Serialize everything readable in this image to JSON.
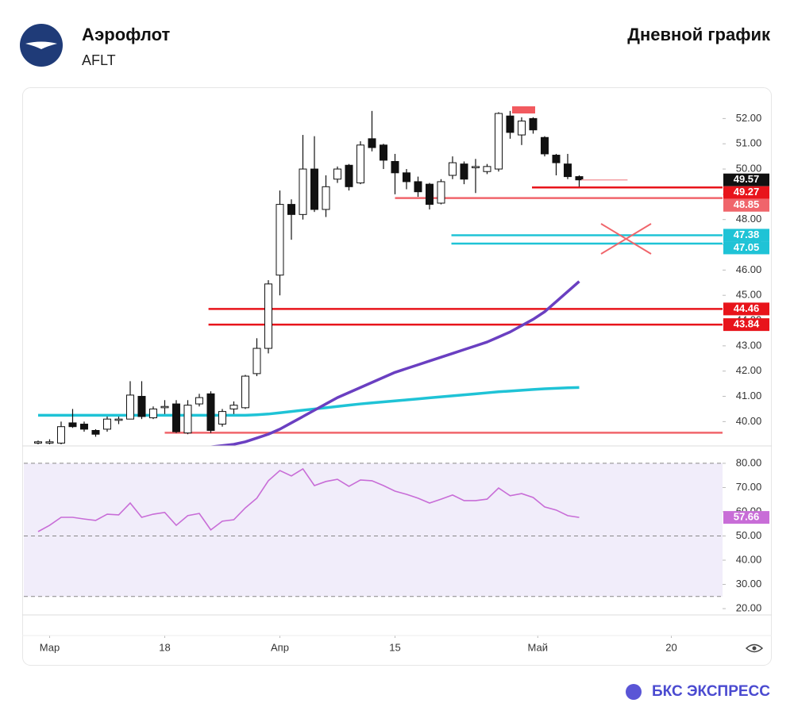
{
  "header": {
    "title": "Аэрофлот",
    "ticker": "AFLT",
    "subtitle": "Дневной график"
  },
  "footer": {
    "brand": "БКС ЭКСПРЕСС"
  },
  "chart_data": [
    {
      "type": "candlestick",
      "open": [
        39.15,
        39.15,
        39.15,
        39.95,
        39.9,
        39.65,
        39.7,
        40.05,
        40.1,
        41.0,
        40.15,
        40.55,
        40.7,
        39.55,
        40.7,
        41.1,
        39.9,
        40.5,
        40.55,
        41.9,
        42.9,
        45.8,
        48.6,
        48.2,
        50.0,
        48.4,
        49.6,
        50.15,
        49.45,
        51.2,
        50.95,
        50.3,
        49.85,
        49.5,
        49.4,
        48.65,
        49.75,
        50.2,
        50.05,
        49.9,
        50.0,
        52.1,
        51.35,
        52.0,
        51.25,
        50.55,
        50.2,
        49.7
      ],
      "high": [
        39.25,
        39.3,
        40.0,
        40.5,
        40.0,
        39.7,
        40.2,
        40.2,
        41.6,
        41.6,
        40.6,
        40.85,
        40.85,
        40.85,
        41.1,
        41.2,
        40.5,
        40.8,
        41.85,
        43.3,
        45.6,
        49.15,
        48.8,
        51.35,
        51.3,
        49.75,
        50.1,
        50.2,
        51.1,
        52.3,
        51.0,
        50.6,
        50.0,
        49.7,
        49.45,
        49.6,
        50.5,
        50.3,
        50.4,
        50.2,
        52.25,
        52.3,
        52.05,
        52.05,
        51.3,
        50.6,
        50.6,
        49.75
      ],
      "low": [
        39.1,
        39.1,
        39.1,
        39.75,
        39.6,
        39.4,
        39.6,
        39.9,
        40.1,
        40.1,
        40.1,
        40.3,
        39.55,
        39.5,
        40.6,
        39.55,
        39.8,
        40.3,
        40.5,
        41.8,
        42.7,
        45.0,
        47.2,
        48.0,
        48.3,
        48.1,
        49.45,
        49.15,
        49.4,
        50.7,
        50.0,
        49.0,
        49.2,
        48.9,
        48.4,
        48.6,
        49.6,
        49.4,
        49.05,
        49.8,
        49.9,
        51.2,
        50.95,
        51.4,
        50.5,
        49.75,
        49.6,
        49.3
      ],
      "close": [
        39.2,
        39.2,
        39.8,
        39.8,
        39.7,
        39.5,
        40.1,
        40.1,
        41.05,
        40.2,
        40.5,
        40.6,
        39.6,
        40.65,
        40.95,
        39.65,
        40.4,
        40.65,
        41.8,
        42.9,
        45.45,
        48.6,
        48.2,
        50.0,
        48.4,
        49.3,
        50.0,
        49.3,
        50.95,
        50.85,
        50.35,
        49.85,
        49.5,
        49.1,
        48.6,
        49.5,
        50.25,
        49.6,
        50.1,
        50.1,
        52.2,
        51.45,
        51.9,
        51.55,
        50.6,
        50.25,
        49.7,
        49.57
      ],
      "up_color": "#ffffff",
      "down_color": "#111111",
      "series": [
        {
          "color": "#1fc3d6",
          "values": [
            40.25,
            40.25,
            40.25,
            40.25,
            40.25,
            40.25,
            40.25,
            40.25,
            40.25,
            40.25,
            40.25,
            40.25,
            40.25,
            40.25,
            40.25,
            40.25,
            40.25,
            40.25,
            40.25,
            40.27,
            40.3,
            40.35,
            40.4,
            40.45,
            40.5,
            40.55,
            40.6,
            40.65,
            40.7,
            40.74,
            40.78,
            40.82,
            40.86,
            40.9,
            40.94,
            40.98,
            41.02,
            41.06,
            41.1,
            41.14,
            41.18,
            41.21,
            41.24,
            41.27,
            41.3,
            41.32,
            41.34,
            41.35
          ]
        },
        {
          "color": "#6a3fc1",
          "values": [
            null,
            null,
            null,
            null,
            null,
            null,
            null,
            null,
            null,
            null,
            null,
            null,
            null,
            null,
            null,
            39.0,
            39.05,
            39.1,
            39.2,
            39.35,
            39.5,
            39.7,
            39.95,
            40.2,
            40.45,
            40.7,
            40.95,
            41.15,
            41.35,
            41.55,
            41.75,
            41.95,
            42.1,
            42.25,
            42.4,
            42.55,
            42.7,
            42.85,
            43.0,
            43.15,
            43.35,
            43.55,
            43.8,
            44.05,
            44.35,
            44.75,
            45.15,
            45.55
          ]
        }
      ],
      "levels": [
        {
          "value": 49.27,
          "color": "#e8141b",
          "x": [
            42.9,
            59.45
          ],
          "label_box": true
        },
        {
          "value": 48.85,
          "color": "#f0656b",
          "x": [
            31.0,
            59.45
          ],
          "label_box": true
        },
        {
          "value": 47.38,
          "color": "#1fc3d6",
          "x": [
            35.9,
            59.45
          ],
          "label_box": true
        },
        {
          "value": 47.05,
          "color": "#1fc3d6",
          "x": [
            35.9,
            59.45
          ],
          "label_box": true
        },
        {
          "value": 44.46,
          "color": "#e8141b",
          "x": [
            14.8,
            59.45
          ],
          "label_box": true
        },
        {
          "value": 43.84,
          "color": "#e8141b",
          "x": [
            14.8,
            59.45
          ],
          "label_box": true
        },
        {
          "value": 39.56,
          "color": "#f0656b",
          "x": [
            11.0,
            59.45
          ],
          "label_box": false
        }
      ],
      "last_price_line": {
        "color": "#f4a0a4",
        "x": [
          47.2,
          51.2
        ]
      },
      "last_price_box_color": "#111111",
      "xlim": [
        -1.24,
        59.45
      ],
      "ylim": [
        39.1,
        53.08
      ],
      "xticks": [
        {
          "value": 1,
          "label": "Мар"
        },
        {
          "value": 11,
          "label": "18"
        },
        {
          "value": 21,
          "label": "Апр"
        },
        {
          "value": 31,
          "label": "15"
        },
        {
          "value": 43.4,
          "label": "Май"
        },
        {
          "value": 55,
          "label": "20"
        }
      ],
      "yticks": [
        {
          "value": 40,
          "label": "40.00"
        },
        {
          "value": 41,
          "label": "41.00"
        },
        {
          "value": 42,
          "label": "42.00"
        },
        {
          "value": 43,
          "label": "43.00"
        },
        {
          "value": 44,
          "label": "44.00"
        },
        {
          "value": 45,
          "label": "45.00"
        },
        {
          "value": 46,
          "label": "46.00"
        },
        {
          "value": 47,
          "label": "47.00"
        },
        {
          "value": 48,
          "label": "48.00"
        },
        {
          "value": 49,
          "label": "49.00"
        },
        {
          "value": 50,
          "label": "50.00"
        },
        {
          "value": 51,
          "label": "51.00"
        },
        {
          "value": 52,
          "label": "52.00"
        }
      ]
    },
    {
      "type": "line",
      "color": "#c86dd7",
      "values": [
        51.8,
        54.4,
        57.7,
        57.7,
        57.0,
        56.4,
        59.0,
        58.7,
        63.6,
        57.7,
        59.0,
        59.7,
        54.4,
        58.4,
        59.3,
        52.5,
        56.1,
        56.7,
        61.6,
        65.6,
        72.8,
        77.0,
        74.8,
        77.7,
        70.8,
        72.5,
        73.4,
        70.5,
        73.1,
        72.8,
        70.8,
        68.5,
        67.2,
        65.6,
        63.6,
        65.2,
        66.9,
        64.6,
        64.6,
        65.2,
        69.8,
        66.6,
        67.5,
        65.9,
        62.0,
        60.7,
        58.4,
        57.66
      ],
      "bands": [
        80,
        50,
        25
      ],
      "band_fill": "#f1edfa",
      "ylim": [
        17.4,
        86.2
      ],
      "yticks": [
        {
          "value": 20,
          "label": "20.00"
        },
        {
          "value": 30,
          "label": "30.00"
        },
        {
          "value": 40,
          "label": "40.00"
        },
        {
          "value": 50,
          "label": "50.00"
        },
        {
          "value": 60,
          "label": "60.00"
        },
        {
          "value": 70,
          "label": "70.00"
        },
        {
          "value": 80,
          "label": "80.00"
        }
      ]
    }
  ]
}
